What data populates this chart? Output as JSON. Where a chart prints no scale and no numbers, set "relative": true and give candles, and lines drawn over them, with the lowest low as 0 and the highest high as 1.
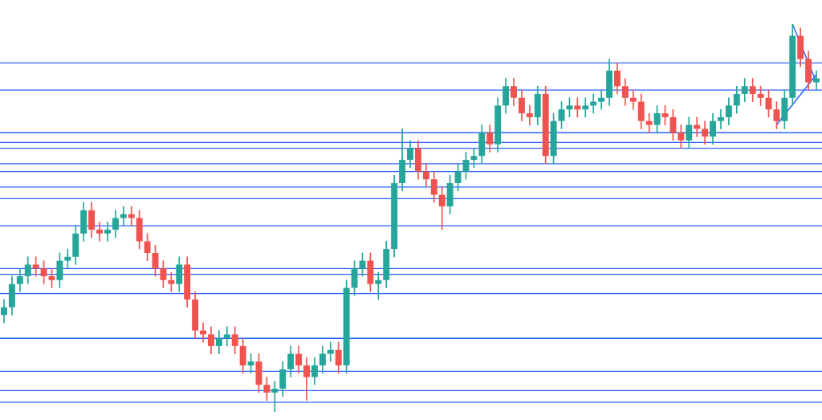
{
  "chart_data": {
    "type": "candlestick",
    "relative": true,
    "categories": [
      null,
      null,
      null,
      null,
      null,
      null,
      null,
      null,
      null,
      null,
      null,
      null,
      null,
      null,
      null,
      null,
      null,
      null,
      null,
      null,
      null,
      null,
      null,
      null,
      null,
      null,
      null,
      null,
      null,
      null,
      null,
      null,
      null,
      null,
      null,
      null,
      null,
      null,
      null,
      null,
      null,
      null,
      null,
      null,
      null,
      null,
      null,
      null,
      null,
      null,
      null,
      null,
      null,
      null,
      null,
      null,
      null,
      null,
      null,
      null,
      null,
      null,
      null,
      null,
      null,
      null,
      null,
      null,
      null,
      null,
      null,
      null,
      null,
      null,
      null,
      null,
      null,
      null,
      null,
      null,
      null,
      null,
      null,
      null,
      null,
      null,
      null,
      null,
      null,
      null,
      null,
      null,
      null,
      null,
      null,
      null,
      null,
      null,
      null,
      null,
      null,
      null,
      null
    ],
    "ohlc": [
      [
        0.25,
        0.29,
        0.23,
        0.27
      ],
      [
        0.27,
        0.35,
        0.25,
        0.33
      ],
      [
        0.33,
        0.37,
        0.31,
        0.35
      ],
      [
        0.35,
        0.4,
        0.33,
        0.38
      ],
      [
        0.38,
        0.4,
        0.35,
        0.37
      ],
      [
        0.37,
        0.39,
        0.33,
        0.35
      ],
      [
        0.35,
        0.37,
        0.32,
        0.34
      ],
      [
        0.34,
        0.41,
        0.32,
        0.39
      ],
      [
        0.39,
        0.42,
        0.37,
        0.4
      ],
      [
        0.4,
        0.48,
        0.38,
        0.46
      ],
      [
        0.46,
        0.54,
        0.44,
        0.52
      ],
      [
        0.52,
        0.54,
        0.45,
        0.47
      ],
      [
        0.47,
        0.49,
        0.44,
        0.46
      ],
      [
        0.46,
        0.49,
        0.44,
        0.47
      ],
      [
        0.47,
        0.52,
        0.45,
        0.5
      ],
      [
        0.5,
        0.53,
        0.48,
        0.51
      ],
      [
        0.51,
        0.53,
        0.48,
        0.5
      ],
      [
        0.5,
        0.52,
        0.42,
        0.44
      ],
      [
        0.44,
        0.46,
        0.39,
        0.41
      ],
      [
        0.41,
        0.43,
        0.35,
        0.37
      ],
      [
        0.37,
        0.39,
        0.32,
        0.34
      ],
      [
        0.34,
        0.36,
        0.31,
        0.33
      ],
      [
        0.33,
        0.4,
        0.31,
        0.38
      ],
      [
        0.38,
        0.4,
        0.27,
        0.29
      ],
      [
        0.29,
        0.31,
        0.19,
        0.21
      ],
      [
        0.21,
        0.23,
        0.18,
        0.2
      ],
      [
        0.2,
        0.22,
        0.15,
        0.17
      ],
      [
        0.17,
        0.21,
        0.15,
        0.19
      ],
      [
        0.19,
        0.22,
        0.17,
        0.2
      ],
      [
        0.2,
        0.22,
        0.15,
        0.17
      ],
      [
        0.17,
        0.19,
        0.1,
        0.12
      ],
      [
        0.12,
        0.15,
        0.1,
        0.13
      ],
      [
        0.13,
        0.15,
        0.05,
        0.07
      ],
      [
        0.07,
        0.09,
        0.03,
        0.05
      ],
      [
        0.05,
        0.08,
        0.0,
        0.06
      ],
      [
        0.06,
        0.13,
        0.04,
        0.11
      ],
      [
        0.11,
        0.17,
        0.09,
        0.15
      ],
      [
        0.15,
        0.17,
        0.1,
        0.12
      ],
      [
        0.12,
        0.14,
        0.03,
        0.09
      ],
      [
        0.09,
        0.14,
        0.07,
        0.12
      ],
      [
        0.12,
        0.17,
        0.1,
        0.15
      ],
      [
        0.15,
        0.18,
        0.13,
        0.16
      ],
      [
        0.16,
        0.18,
        0.1,
        0.12
      ],
      [
        0.12,
        0.34,
        0.1,
        0.32
      ],
      [
        0.32,
        0.39,
        0.3,
        0.37
      ],
      [
        0.37,
        0.41,
        0.35,
        0.39
      ],
      [
        0.39,
        0.41,
        0.31,
        0.33
      ],
      [
        0.33,
        0.36,
        0.29,
        0.34
      ],
      [
        0.34,
        0.44,
        0.32,
        0.42
      ],
      [
        0.42,
        0.61,
        0.4,
        0.59
      ],
      [
        0.59,
        0.73,
        0.57,
        0.65
      ],
      [
        0.65,
        0.7,
        0.63,
        0.68
      ],
      [
        0.68,
        0.7,
        0.6,
        0.62
      ],
      [
        0.62,
        0.64,
        0.58,
        0.6
      ],
      [
        0.6,
        0.62,
        0.54,
        0.56
      ],
      [
        0.56,
        0.58,
        0.47,
        0.53
      ],
      [
        0.53,
        0.61,
        0.51,
        0.59
      ],
      [
        0.59,
        0.64,
        0.57,
        0.62
      ],
      [
        0.62,
        0.67,
        0.6,
        0.65
      ],
      [
        0.65,
        0.68,
        0.63,
        0.66
      ],
      [
        0.66,
        0.74,
        0.64,
        0.72
      ],
      [
        0.72,
        0.74,
        0.67,
        0.69
      ],
      [
        0.69,
        0.81,
        0.67,
        0.79
      ],
      [
        0.79,
        0.86,
        0.77,
        0.84
      ],
      [
        0.84,
        0.86,
        0.79,
        0.81
      ],
      [
        0.81,
        0.83,
        0.75,
        0.77
      ],
      [
        0.77,
        0.79,
        0.74,
        0.76
      ],
      [
        0.76,
        0.84,
        0.74,
        0.82
      ],
      [
        0.82,
        0.84,
        0.64,
        0.66
      ],
      [
        0.66,
        0.77,
        0.64,
        0.75
      ],
      [
        0.75,
        0.8,
        0.73,
        0.78
      ],
      [
        0.78,
        0.81,
        0.76,
        0.79
      ],
      [
        0.79,
        0.81,
        0.76,
        0.78
      ],
      [
        0.78,
        0.81,
        0.76,
        0.79
      ],
      [
        0.79,
        0.82,
        0.77,
        0.8
      ],
      [
        0.8,
        0.83,
        0.78,
        0.81
      ],
      [
        0.81,
        0.91,
        0.79,
        0.88
      ],
      [
        0.88,
        0.9,
        0.82,
        0.84
      ],
      [
        0.84,
        0.86,
        0.79,
        0.81
      ],
      [
        0.81,
        0.83,
        0.78,
        0.8
      ],
      [
        0.8,
        0.82,
        0.73,
        0.75
      ],
      [
        0.75,
        0.77,
        0.72,
        0.74
      ],
      [
        0.74,
        0.79,
        0.72,
        0.77
      ],
      [
        0.77,
        0.79,
        0.74,
        0.76
      ],
      [
        0.76,
        0.78,
        0.7,
        0.72
      ],
      [
        0.72,
        0.74,
        0.68,
        0.7
      ],
      [
        0.7,
        0.76,
        0.68,
        0.74
      ],
      [
        0.74,
        0.76,
        0.71,
        0.73
      ],
      [
        0.73,
        0.75,
        0.69,
        0.71
      ],
      [
        0.71,
        0.77,
        0.69,
        0.75
      ],
      [
        0.75,
        0.78,
        0.73,
        0.76
      ],
      [
        0.76,
        0.81,
        0.74,
        0.79
      ],
      [
        0.79,
        0.84,
        0.77,
        0.82
      ],
      [
        0.82,
        0.86,
        0.8,
        0.84
      ],
      [
        0.84,
        0.86,
        0.8,
        0.82
      ],
      [
        0.82,
        0.84,
        0.79,
        0.81
      ],
      [
        0.81,
        0.83,
        0.76,
        0.78
      ],
      [
        0.78,
        0.8,
        0.73,
        0.75
      ],
      [
        0.75,
        0.83,
        0.73,
        0.81
      ],
      [
        0.81,
        1.0,
        0.79,
        0.97
      ],
      [
        0.97,
        0.99,
        0.89,
        0.91
      ],
      [
        0.91,
        0.93,
        0.83,
        0.85
      ],
      [
        0.85,
        0.88,
        0.83,
        0.86
      ]
    ],
    "colors": [
      "#26a69a",
      "#26a69a",
      "#26a69a",
      "#26a69a",
      "#ef5350",
      "#ef5350",
      "#ef5350",
      "#26a69a",
      "#26a69a",
      "#26a69a",
      "#26a69a",
      "#ef5350",
      "#ef5350",
      "#26a69a",
      "#26a69a",
      "#26a69a",
      "#ef5350",
      "#ef5350",
      "#ef5350",
      "#ef5350",
      "#ef5350",
      "#ef5350",
      "#26a69a",
      "#ef5350",
      "#ef5350",
      "#ef5350",
      "#ef5350",
      "#26a69a",
      "#26a69a",
      "#ef5350",
      "#ef5350",
      "#26a69a",
      "#ef5350",
      "#ef5350",
      "#26a69a",
      "#26a69a",
      "#26a69a",
      "#ef5350",
      "#ef5350",
      "#26a69a",
      "#26a69a",
      "#26a69a",
      "#ef5350",
      "#26a69a",
      "#26a69a",
      "#26a69a",
      "#ef5350",
      "#26a69a",
      "#26a69a",
      "#26a69a",
      "#26a69a",
      "#26a69a",
      "#ef5350",
      "#ef5350",
      "#ef5350",
      "#ef5350",
      "#26a69a",
      "#26a69a",
      "#26a69a",
      "#26a69a",
      "#26a69a",
      "#ef5350",
      "#26a69a",
      "#26a69a",
      "#ef5350",
      "#ef5350",
      "#ef5350",
      "#26a69a",
      "#ef5350",
      "#26a69a",
      "#26a69a",
      "#26a69a",
      "#ef5350",
      "#26a69a",
      "#26a69a",
      "#26a69a",
      "#26a69a",
      "#ef5350",
      "#ef5350",
      "#ef5350",
      "#ef5350",
      "#ef5350",
      "#26a69a",
      "#ef5350",
      "#ef5350",
      "#ef5350",
      "#26a69a",
      "#ef5350",
      "#ef5350",
      "#26a69a",
      "#26a69a",
      "#26a69a",
      "#26a69a",
      "#26a69a",
      "#ef5350",
      "#ef5350",
      "#ef5350",
      "#ef5350",
      "#26a69a",
      "#26a69a",
      "#ef5350",
      "#ef5350",
      "#26a69a"
    ],
    "series": [
      {
        "type": "line",
        "color": "#2962ff",
        "values": [
          null,
          null,
          null,
          null,
          null,
          null,
          null,
          null,
          null,
          null,
          null,
          null,
          null,
          null,
          null,
          null,
          null,
          null,
          null,
          null,
          null,
          null,
          null,
          null,
          null,
          null,
          null,
          null,
          null,
          null,
          null,
          null,
          null,
          null,
          null,
          null,
          null,
          null,
          null,
          null,
          null,
          null,
          null,
          null,
          null,
          null,
          null,
          null,
          null,
          null,
          null,
          null,
          null,
          null,
          null,
          null,
          null,
          null,
          null,
          null,
          null,
          null,
          null,
          null,
          null,
          null,
          null,
          null,
          null,
          null,
          null,
          null,
          null,
          null,
          null,
          null,
          null,
          null,
          null,
          null,
          null,
          null,
          null,
          null,
          null,
          null,
          null,
          null,
          null,
          null,
          null,
          null,
          null,
          null,
          null,
          null,
          null,
          null,
          null,
          1.0,
          null,
          null,
          0.85
        ]
      },
      {
        "type": "line",
        "color": "#2962ff",
        "values": [
          null,
          null,
          null,
          null,
          null,
          null,
          null,
          null,
          null,
          null,
          null,
          null,
          null,
          null,
          null,
          null,
          null,
          null,
          null,
          null,
          null,
          null,
          null,
          null,
          null,
          null,
          null,
          null,
          null,
          null,
          null,
          null,
          null,
          null,
          null,
          null,
          null,
          null,
          null,
          null,
          null,
          null,
          null,
          null,
          null,
          null,
          null,
          null,
          null,
          null,
          null,
          null,
          null,
          null,
          null,
          null,
          null,
          null,
          null,
          null,
          null,
          null,
          null,
          null,
          null,
          null,
          null,
          null,
          null,
          null,
          null,
          null,
          null,
          null,
          null,
          null,
          null,
          null,
          null,
          null,
          null,
          null,
          null,
          null,
          null,
          null,
          null,
          null,
          null,
          null,
          null,
          null,
          null,
          null,
          null,
          null,
          null,
          0.74,
          null,
          null,
          null,
          null,
          0.87
        ]
      }
    ],
    "ref_lines": [
      {
        "axis": "y",
        "value": 0.9,
        "color": "#2962ff"
      },
      {
        "axis": "y",
        "value": 0.83,
        "color": "#2962ff"
      },
      {
        "axis": "y",
        "value": 0.72,
        "color": "#2962ff"
      },
      {
        "axis": "y",
        "value": 0.695,
        "color": "#2962ff"
      },
      {
        "axis": "y",
        "value": 0.68,
        "color": "#2962ff"
      },
      {
        "axis": "y",
        "value": 0.64,
        "color": "#2962ff"
      },
      {
        "axis": "y",
        "value": 0.62,
        "color": "#2962ff"
      },
      {
        "axis": "y",
        "value": 0.58,
        "color": "#2962ff"
      },
      {
        "axis": "y",
        "value": 0.55,
        "color": "#2962ff"
      },
      {
        "axis": "y",
        "value": 0.48,
        "color": "#2962ff"
      },
      {
        "axis": "y",
        "value": 0.37,
        "color": "#2962ff"
      },
      {
        "axis": "y",
        "value": 0.355,
        "color": "#2962ff"
      },
      {
        "axis": "y",
        "value": 0.305,
        "color": "#2962ff"
      },
      {
        "axis": "y",
        "value": 0.19,
        "color": "#2962ff"
      },
      {
        "axis": "y",
        "value": 0.105,
        "color": "#2962ff"
      },
      {
        "axis": "y",
        "value": 0.055,
        "color": "#2962ff"
      },
      {
        "axis": "y",
        "value": 0.025,
        "color": "#2962ff"
      }
    ],
    "legend": false
  }
}
